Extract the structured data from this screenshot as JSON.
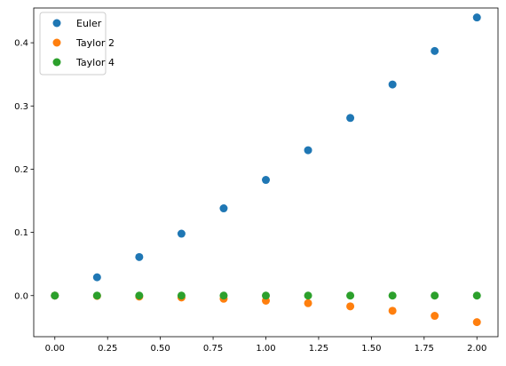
{
  "chart_data": {
    "type": "scatter",
    "title": "",
    "xlabel": "",
    "ylabel": "",
    "xlim": [
      -0.1,
      2.1
    ],
    "ylim": [
      -0.065,
      0.455
    ],
    "xticks": [
      0.0,
      0.25,
      0.5,
      0.75,
      1.0,
      1.25,
      1.5,
      1.75,
      2.0
    ],
    "xtick_labels": [
      "0.00",
      "0.25",
      "0.50",
      "0.75",
      "1.00",
      "1.25",
      "1.50",
      "1.75",
      "2.00"
    ],
    "yticks": [
      0.0,
      0.1,
      0.2,
      0.3,
      0.4
    ],
    "ytick_labels": [
      "0.0",
      "0.1",
      "0.2",
      "0.3",
      "0.4"
    ],
    "grid": false,
    "legend_position": "top-left",
    "series": [
      {
        "name": "Euler",
        "color": "#1f77b4",
        "x": [
          0.0,
          0.2,
          0.4,
          0.6,
          0.8,
          1.0,
          1.2,
          1.4,
          1.6,
          1.8,
          2.0
        ],
        "y": [
          0.0,
          0.029,
          0.061,
          0.098,
          0.138,
          0.183,
          0.23,
          0.281,
          0.334,
          0.387,
          0.44
        ]
      },
      {
        "name": "Taylor 2",
        "color": "#ff7f0e",
        "x": [
          0.0,
          0.2,
          0.4,
          0.6,
          0.8,
          1.0,
          1.2,
          1.4,
          1.6,
          1.8,
          2.0
        ],
        "y": [
          0.0,
          -0.0005,
          -0.0015,
          -0.003,
          -0.005,
          -0.008,
          -0.012,
          -0.017,
          -0.024,
          -0.032,
          -0.042
        ]
      },
      {
        "name": "Taylor 4",
        "color": "#2ca02c",
        "x": [
          0.0,
          0.2,
          0.4,
          0.6,
          0.8,
          1.0,
          1.2,
          1.4,
          1.6,
          1.8,
          2.0
        ],
        "y": [
          0.0,
          0.0,
          0.0,
          0.0,
          0.0,
          0.0,
          0.0,
          0.0,
          0.0,
          0.0,
          0.0
        ]
      }
    ]
  }
}
